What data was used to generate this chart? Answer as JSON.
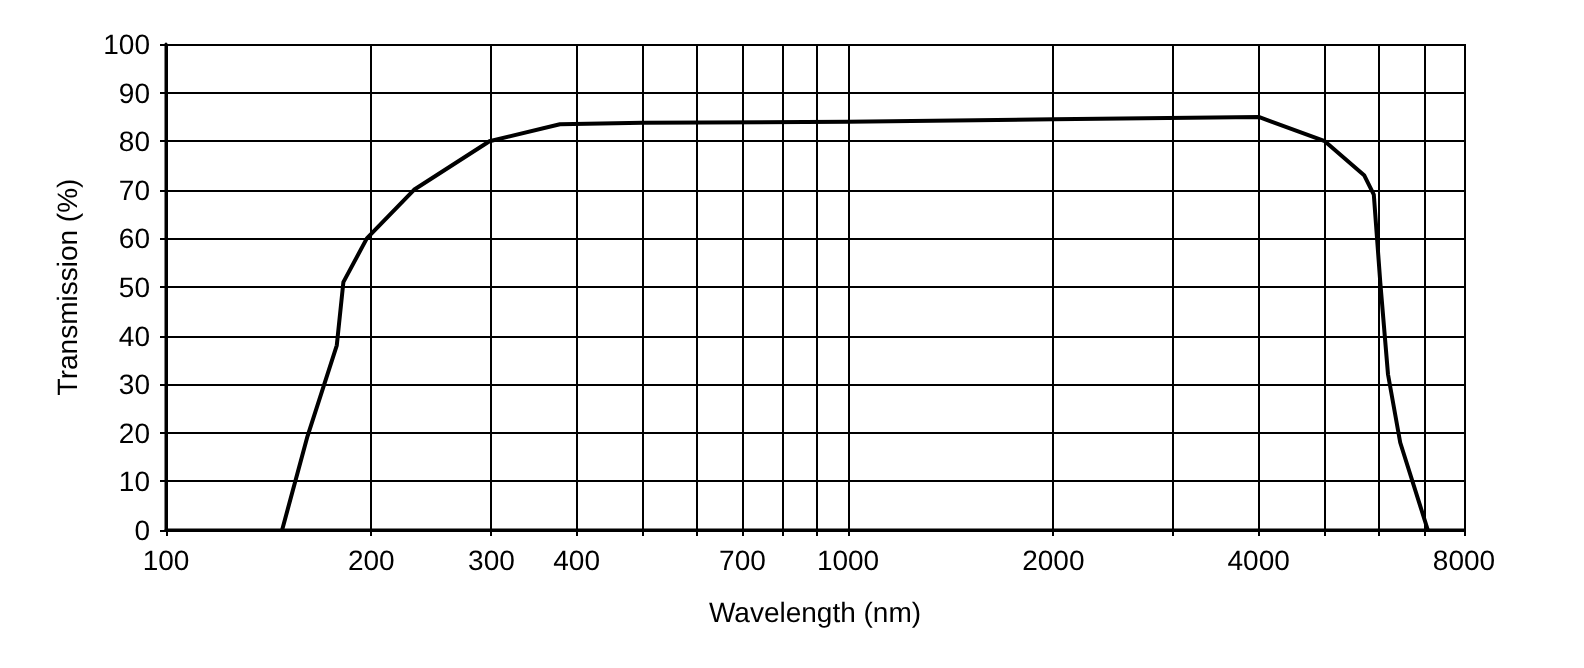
{
  "chart_data": {
    "type": "line",
    "xlabel": "Wavelength (nm)",
    "ylabel": "Transmission (%)",
    "log": "x",
    "grid": true,
    "marker": "none",
    "line_style": "solid",
    "xlim": [
      100,
      8000
    ],
    "ylim": [
      0,
      100
    ],
    "xticks": [
      100,
      200,
      300,
      400,
      {
        "value": 500,
        "label": null
      },
      {
        "value": 600,
        "label": null
      },
      700,
      {
        "value": 800,
        "label": null
      },
      {
        "value": 900,
        "label": null
      },
      1000,
      2000,
      {
        "value": 3000,
        "label": null
      },
      4000,
      {
        "value": 5000,
        "label": null
      },
      {
        "value": 6000,
        "label": null
      },
      {
        "value": 7000,
        "label": null
      },
      8000
    ],
    "yticks": [
      0,
      10,
      20,
      30,
      40,
      50,
      60,
      70,
      80,
      90,
      100
    ],
    "series": [
      {
        "color": "#000000",
        "x": [
          148,
          161,
          178,
          182,
          197,
          231,
          298,
          378,
          500,
          1000,
          2000,
          4000,
          5000,
          5710,
          5900,
          6030,
          6190,
          6450,
          7080
        ],
        "values": [
          0,
          19,
          38,
          51,
          60,
          70,
          80,
          83.5,
          83.8,
          84,
          84.5,
          85,
          80,
          73,
          69,
          51,
          32,
          18,
          0
        ]
      }
    ]
  }
}
